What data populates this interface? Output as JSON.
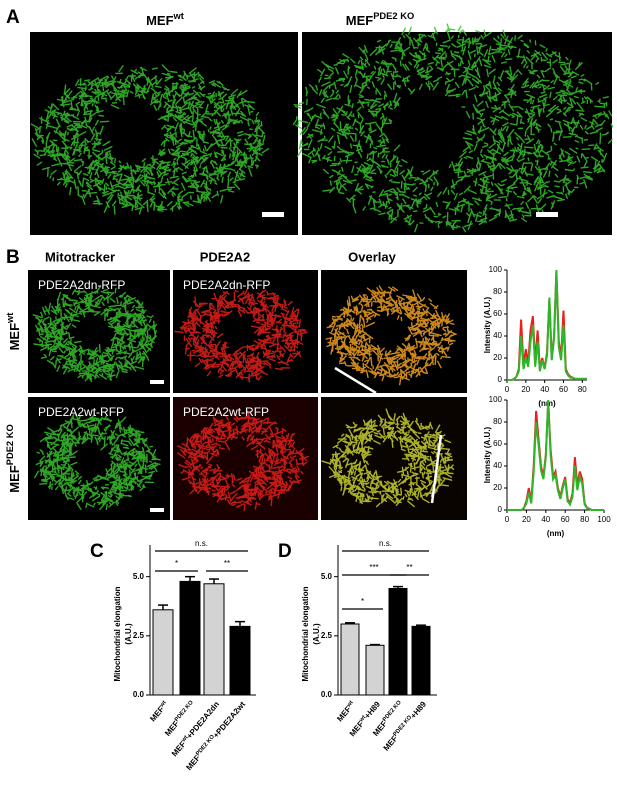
{
  "panel_a": {
    "label": "A",
    "titles": [
      [
        "MEF",
        "wt"
      ],
      [
        "MEF",
        "PDE2 KO"
      ]
    ]
  },
  "panel_b": {
    "label": "B",
    "columns": [
      "Mitotracker",
      "PDE2A2",
      "Overlay"
    ],
    "rows": [
      [
        "MEF",
        "wt"
      ],
      [
        "MEF",
        "PDE2 KO"
      ]
    ],
    "image_labels": [
      [
        "PDE2A2dn-RFP",
        "PDE2A2dn-RFP"
      ],
      [
        "PDE2A2wt-RFP",
        "PDE2A2wt-RFP"
      ]
    ]
  },
  "chart_data": [
    {
      "type": "line",
      "ylabel": "Intensity (A.U.)",
      "xlabel": "(nm)",
      "xlim": [
        0,
        85
      ],
      "ylim": [
        0,
        100
      ],
      "xticks": [
        0,
        20,
        40,
        60,
        80
      ],
      "yticks": [
        0,
        20,
        40,
        60,
        80,
        100
      ],
      "x": [
        0,
        2.5,
        5,
        7.5,
        10,
        12.5,
        15,
        17.5,
        20,
        22.5,
        25,
        27.5,
        30,
        32.5,
        35,
        37.5,
        40,
        42.5,
        45,
        47.5,
        50,
        52.5,
        55,
        57.5,
        60,
        62.5,
        65,
        67.5,
        70,
        72.5,
        75,
        77.5,
        80,
        82.5,
        85
      ],
      "series": [
        {
          "color": "#e8201e",
          "values": [
            0,
            0,
            0,
            1,
            3,
            10,
            55,
            12,
            28,
            15,
            45,
            58,
            15,
            45,
            10,
            20,
            10,
            25,
            73,
            20,
            40,
            98,
            35,
            20,
            63,
            10,
            5,
            3,
            2,
            1,
            1,
            1,
            1,
            1,
            1
          ]
        },
        {
          "color": "#2fb52a",
          "values": [
            0,
            0,
            0,
            1,
            3,
            8,
            40,
            10,
            20,
            12,
            35,
            50,
            12,
            35,
            8,
            18,
            10,
            22,
            75,
            18,
            38,
            100,
            30,
            18,
            50,
            8,
            4,
            2,
            2,
            1,
            1,
            1,
            1,
            1,
            1
          ]
        }
      ]
    },
    {
      "type": "line",
      "ylabel": "Intensity (A.U.)",
      "xlabel": "(nm)",
      "xlim": [
        0,
        100
      ],
      "ylim": [
        0,
        100
      ],
      "xticks": [
        0,
        20,
        40,
        60,
        80,
        100
      ],
      "yticks": [
        0,
        20,
        40,
        60,
        80,
        100
      ],
      "x": [
        0,
        2.5,
        5,
        7.5,
        10,
        12.5,
        15,
        17.5,
        20,
        22.5,
        25,
        27.5,
        30,
        32.5,
        35,
        37.5,
        40,
        42.5,
        45,
        47.5,
        50,
        52.5,
        55,
        57.5,
        60,
        62.5,
        65,
        67.5,
        70,
        72.5,
        75,
        77.5,
        80,
        82.5,
        85,
        87.5,
        90,
        92.5,
        95,
        97.5,
        100
      ],
      "series": [
        {
          "color": "#e8201e",
          "values": [
            0,
            0,
            0,
            0,
            0,
            0,
            0,
            2,
            8,
            20,
            8,
            40,
            90,
            65,
            40,
            30,
            50,
            98,
            55,
            30,
            35,
            20,
            12,
            22,
            30,
            10,
            6,
            15,
            48,
            22,
            35,
            28,
            6,
            2,
            1,
            0,
            0,
            0,
            0,
            0,
            0
          ]
        },
        {
          "color": "#2fb52a",
          "values": [
            0,
            0,
            0,
            0,
            0,
            0,
            0,
            2,
            6,
            16,
            6,
            35,
            80,
            60,
            36,
            28,
            48,
            100,
            50,
            28,
            32,
            18,
            10,
            20,
            28,
            8,
            5,
            12,
            40,
            18,
            30,
            24,
            5,
            2,
            1,
            0,
            0,
            0,
            0,
            0,
            0
          ]
        }
      ]
    },
    {
      "type": "bar",
      "panel": "C",
      "ylabel": [
        "Mitochondrial elongation",
        "(A.U.)"
      ],
      "ylim": [
        0,
        6
      ],
      "yticks": [
        {
          "value": 0,
          "label": "0.0"
        },
        {
          "value": 2.5,
          "label": "2.5"
        },
        {
          "value": 5,
          "label": "5.0"
        }
      ],
      "categories": [
        [
          "MEF",
          "wt"
        ],
        [
          "MEF",
          "PDE2 KO"
        ],
        [
          "MEF",
          "wt",
          "+PDE2A2dn"
        ],
        [
          "MEF",
          "PDE2 KO",
          "+PDE2A2wt"
        ]
      ],
      "values": [
        3.6,
        4.8,
        4.7,
        2.9
      ],
      "errors": [
        0.2,
        0.2,
        0.2,
        0.2
      ],
      "colors": [
        "#d3d3d3",
        "#000000",
        "#d3d3d3",
        "#000000"
      ],
      "annotations": [
        "n.s.",
        "*",
        "**"
      ]
    },
    {
      "type": "bar",
      "panel": "D",
      "ylabel": [
        "Mitochondrial elongation",
        "(A.U.)"
      ],
      "ylim": [
        0,
        6
      ],
      "yticks": [
        {
          "value": 0,
          "label": "0.0"
        },
        {
          "value": 2.5,
          "label": "2.5"
        },
        {
          "value": 5,
          "label": "5.0"
        }
      ],
      "categories": [
        [
          "MEF",
          "wt"
        ],
        [
          "MEF",
          "wt",
          "+H89"
        ],
        [
          "MEF",
          "PDE2 KO"
        ],
        [
          "MEF",
          "PDE2 KO",
          "+H89"
        ]
      ],
      "values": [
        3.0,
        2.1,
        4.5,
        2.9
      ],
      "errors": [
        0.05,
        0.03,
        0.08,
        0.05
      ],
      "colors": [
        "#d3d3d3",
        "#d3d3d3",
        "#000000",
        "#000000"
      ],
      "annotations": [
        "n.s.",
        "***",
        "**",
        "*"
      ]
    }
  ]
}
